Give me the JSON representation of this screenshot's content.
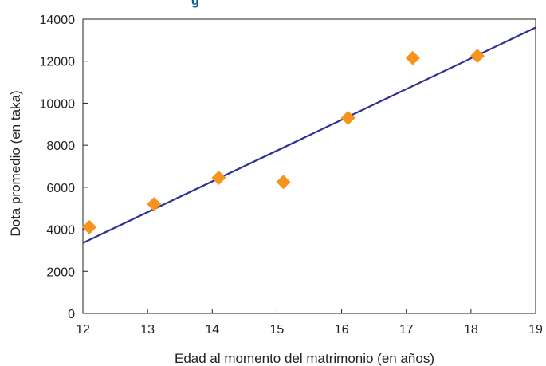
{
  "header": {
    "partial_title": "g"
  },
  "chart_data": {
    "type": "scatter",
    "title": "",
    "xlabel": "Edad al momento del matrimonio (en años)",
    "ylabel": "Dota promedio (en taka)",
    "xlim": [
      12,
      19
    ],
    "ylim": [
      0,
      14000
    ],
    "x_ticks": [
      12,
      13,
      14,
      15,
      16,
      17,
      18,
      19
    ],
    "y_ticks": [
      0,
      2000,
      4000,
      6000,
      8000,
      10000,
      12000,
      14000
    ],
    "grid": false,
    "legend": "none",
    "series": [
      {
        "type": "scatter",
        "marker": "diamond",
        "color": "#f7941d",
        "points": [
          {
            "x": 12.1,
            "y": 4100
          },
          {
            "x": 13.1,
            "y": 5200
          },
          {
            "x": 14.1,
            "y": 6450
          },
          {
            "x": 15.1,
            "y": 6250
          },
          {
            "x": 16.1,
            "y": 9300
          },
          {
            "x": 17.1,
            "y": 12150
          },
          {
            "x": 18.1,
            "y": 12250
          }
        ]
      },
      {
        "type": "line",
        "style": "linear-trend",
        "color": "#2e3192",
        "points": [
          {
            "x": 12.0,
            "y": 3350
          },
          {
            "x": 19.0,
            "y": 13600
          }
        ]
      }
    ]
  }
}
